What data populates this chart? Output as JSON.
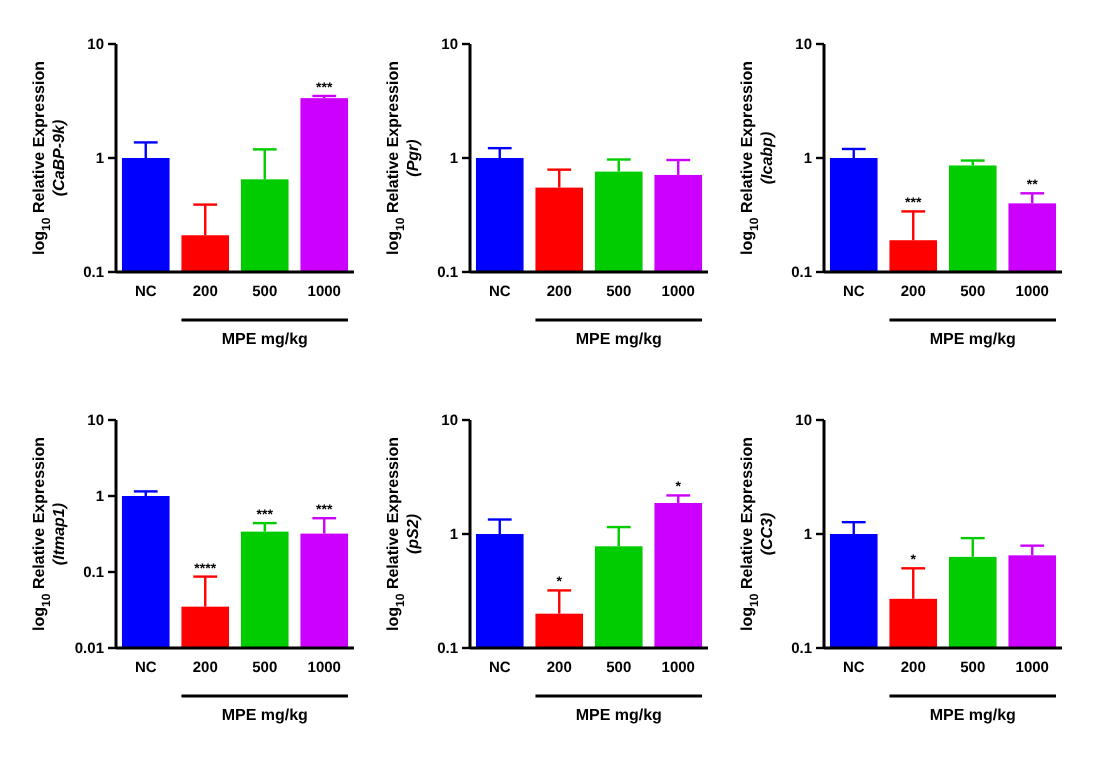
{
  "chart_data": [
    {
      "type": "bar",
      "ylabel": "log$_{10}$ Relative Expression\n(CaBP-9k)",
      "xlabel": "MPE mg/kg",
      "categories": [
        "NC",
        "200",
        "500",
        "1000"
      ],
      "values": [
        1.0,
        0.21,
        0.65,
        3.35
      ],
      "colors": [
        "#0000ff",
        "#ff0000",
        "#00cc00",
        "#cc00ff"
      ],
      "errors": [
        [
          1.0,
          1.37
        ],
        [
          0.21,
          0.39
        ],
        [
          0.65,
          1.19
        ],
        [
          3.35,
          3.5
        ]
      ],
      "log": true,
      "ylim": [
        0.1,
        10
      ],
      "yticks": [
        0.1,
        1,
        10
      ],
      "grid": false,
      "annotations": [
        {
          "text": "***",
          "x": "1000",
          "y": 3.5
        }
      ]
    },
    {
      "type": "bar",
      "ylabel": "log$_{10}$ Relative Expression\n(Pgr)",
      "xlabel": "MPE mg/kg",
      "categories": [
        "NC",
        "200",
        "500",
        "1000"
      ],
      "values": [
        1.0,
        0.55,
        0.76,
        0.71
      ],
      "colors": [
        "#0000ff",
        "#ff0000",
        "#00cc00",
        "#cc00ff"
      ],
      "errors": [
        [
          1.0,
          1.22
        ],
        [
          0.55,
          0.79
        ],
        [
          0.76,
          0.97
        ],
        [
          0.71,
          0.96
        ]
      ],
      "log": true,
      "ylim": [
        0.1,
        10
      ],
      "yticks": [
        0.1,
        1,
        10
      ],
      "grid": false
    },
    {
      "type": "bar",
      "ylabel": "log$_{10}$ Relative Expression\n(Icabp)",
      "xlabel": "MPE mg/kg",
      "categories": [
        "NC",
        "200",
        "500",
        "1000"
      ],
      "values": [
        1.0,
        0.19,
        0.86,
        0.4
      ],
      "colors": [
        "#0000ff",
        "#ff0000",
        "#00cc00",
        "#cc00ff"
      ],
      "errors": [
        [
          1.0,
          1.2
        ],
        [
          0.19,
          0.34
        ],
        [
          0.86,
          0.95
        ],
        [
          0.4,
          0.49
        ]
      ],
      "log": true,
      "ylim": [
        0.1,
        10
      ],
      "yticks": [
        0.1,
        1,
        10
      ],
      "grid": false,
      "annotations": [
        {
          "text": "***",
          "x": "200",
          "y": 0.34
        },
        {
          "text": "**",
          "x": "1000",
          "y": 0.49
        }
      ]
    },
    {
      "type": "bar",
      "ylabel": "log$_{10}$ Relative Expression\n(Itmap1)",
      "xlabel": "MPE mg/kg",
      "categories": [
        "NC",
        "200",
        "500",
        "1000"
      ],
      "values": [
        1.0,
        0.035,
        0.34,
        0.32
      ],
      "colors": [
        "#0000ff",
        "#ff0000",
        "#00cc00",
        "#cc00ff"
      ],
      "errors": [
        [
          1.0,
          1.15
        ],
        [
          0.035,
          0.087
        ],
        [
          0.34,
          0.44
        ],
        [
          0.32,
          0.51
        ]
      ],
      "log": true,
      "ylim": [
        0.01,
        10
      ],
      "yticks": [
        0.01,
        0.1,
        1,
        10
      ],
      "grid": false,
      "annotations": [
        {
          "text": "****",
          "x": "200",
          "y": 0.087
        },
        {
          "text": "***",
          "x": "500",
          "y": 0.44
        },
        {
          "text": "***",
          "x": "1000",
          "y": 0.51
        }
      ]
    },
    {
      "type": "bar",
      "ylabel": "log$_{10}$ Relative Expression\n(pS2)",
      "xlabel": "MPE mg/kg",
      "categories": [
        "NC",
        "200",
        "500",
        "1000"
      ],
      "values": [
        1.0,
        0.2,
        0.78,
        1.87
      ],
      "colors": [
        "#0000ff",
        "#ff0000",
        "#00cc00",
        "#cc00ff"
      ],
      "errors": [
        [
          1.0,
          1.34
        ],
        [
          0.2,
          0.32
        ],
        [
          0.78,
          1.15
        ],
        [
          1.87,
          2.18
        ]
      ],
      "log": true,
      "ylim": [
        0.1,
        10
      ],
      "yticks": [
        0.1,
        1,
        10
      ],
      "grid": false,
      "annotations": [
        {
          "text": "*",
          "x": "200",
          "y": 0.32
        },
        {
          "text": "*",
          "x": "1000",
          "y": 2.18
        }
      ]
    },
    {
      "type": "bar",
      "ylabel": "log$_{10}$ Relative Expression\n(CC3)",
      "xlabel": "MPE mg/kg",
      "categories": [
        "NC",
        "200",
        "500",
        "1000"
      ],
      "values": [
        1.0,
        0.27,
        0.63,
        0.65
      ],
      "colors": [
        "#0000ff",
        "#ff0000",
        "#00cc00",
        "#cc00ff"
      ],
      "errors": [
        [
          1.0,
          1.27
        ],
        [
          0.27,
          0.5
        ],
        [
          0.63,
          0.92
        ],
        [
          0.65,
          0.79
        ]
      ],
      "log": true,
      "ylim": [
        0.1,
        10
      ],
      "yticks": [
        0.1,
        1,
        10
      ],
      "grid": false,
      "annotations": [
        {
          "text": "*",
          "x": "200",
          "y": 0.5
        }
      ]
    }
  ]
}
